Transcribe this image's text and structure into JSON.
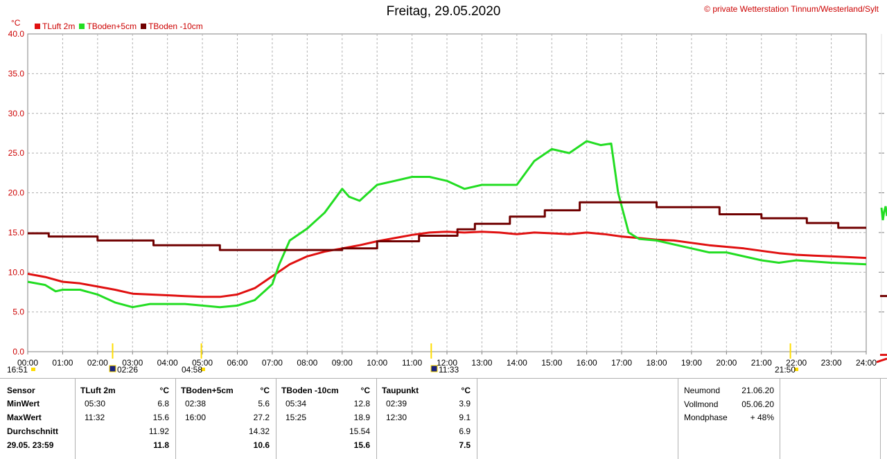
{
  "header": {
    "title": "Freitag, 29.05.2020",
    "copyright": "© private Wetterstation Tinnum/Westerland/Sylt",
    "unit": "°C"
  },
  "colors": {
    "tluft": "#e01010",
    "tboden5": "#22dd22",
    "tboden10": "#700000",
    "grid": "#b0b0b0",
    "axis_text": "#cc0000",
    "marker": "#ffdd00"
  },
  "chart_data": {
    "type": "line",
    "title": "Freitag, 29.05.2020",
    "ylabel": "°C",
    "xlabel": "",
    "xlim": [
      0,
      24
    ],
    "ylim": [
      0,
      40
    ],
    "grid": true,
    "legend": "top-left",
    "x_ticks": [
      "00:00",
      "01:00",
      "02:00",
      "03:00",
      "04:00",
      "05:00",
      "06:00",
      "07:00",
      "08:00",
      "09:00",
      "10:00",
      "11:00",
      "12:00",
      "13:00",
      "14:00",
      "15:00",
      "16:00",
      "17:00",
      "18:00",
      "19:00",
      "20:00",
      "21:00",
      "22:00",
      "23:00",
      "24:00"
    ],
    "y_ticks": [
      "0.0",
      "5.0",
      "10.0",
      "15.0",
      "20.0",
      "25.0",
      "30.0",
      "35.0",
      "40.0"
    ],
    "series": [
      {
        "name": "TLuft 2m",
        "color": "#e01010",
        "x": [
          0,
          0.5,
          1,
          1.5,
          2,
          2.5,
          3,
          3.5,
          4,
          4.5,
          5,
          5.5,
          6,
          6.5,
          7,
          7.5,
          8,
          8.5,
          9,
          9.5,
          10,
          10.5,
          11,
          11.5,
          12,
          12.5,
          13,
          13.5,
          14,
          14.5,
          15,
          15.5,
          16,
          16.5,
          17,
          17.5,
          18,
          18.5,
          19,
          19.5,
          20,
          20.5,
          21,
          21.5,
          22,
          22.5,
          23,
          23.5,
          24
        ],
        "y": [
          9.8,
          9.4,
          8.8,
          8.6,
          8.2,
          7.8,
          7.3,
          7.2,
          7.1,
          7.0,
          6.9,
          6.9,
          7.2,
          8.0,
          9.5,
          11.0,
          12.0,
          12.6,
          13.0,
          13.4,
          13.9,
          14.3,
          14.7,
          15.0,
          15.1,
          15.0,
          15.1,
          15.0,
          14.8,
          15.0,
          14.9,
          14.8,
          15.0,
          14.8,
          14.5,
          14.3,
          14.1,
          14.0,
          13.7,
          13.4,
          13.2,
          13.0,
          12.7,
          12.4,
          12.2,
          12.1,
          12.0,
          11.9,
          11.8
        ]
      },
      {
        "name": "TBoden+5cm",
        "color": "#22dd22",
        "x": [
          0,
          0.5,
          0.8,
          1,
          1.5,
          2,
          2.5,
          3,
          3.5,
          4,
          4.5,
          5,
          5.5,
          6,
          6.5,
          7,
          7.2,
          7.5,
          8,
          8.5,
          9,
          9.2,
          9.5,
          10,
          10.5,
          11,
          11.5,
          12,
          12.5,
          13,
          13.5,
          14,
          14.5,
          15,
          15.5,
          16,
          16.4,
          16.7,
          16.9,
          17.2,
          17.5,
          18,
          19,
          19.5,
          20,
          21,
          21.5,
          22,
          23,
          24
        ],
        "y": [
          8.8,
          8.4,
          7.6,
          7.8,
          7.8,
          7.2,
          6.2,
          5.6,
          6.0,
          6.0,
          6.0,
          5.8,
          5.6,
          5.8,
          6.5,
          8.5,
          11.0,
          14.0,
          15.5,
          17.5,
          20.5,
          19.5,
          19.0,
          21.0,
          21.5,
          22.0,
          22.0,
          21.5,
          20.5,
          21.0,
          21.0,
          21.0,
          24.0,
          25.5,
          25.0,
          26.5,
          26.0,
          26.2,
          20.0,
          15.0,
          14.2,
          14.0,
          13.0,
          12.5,
          12.5,
          11.5,
          11.2,
          11.5,
          11.2,
          11.0
        ]
      },
      {
        "name": "TBoden -10cm",
        "color": "#700000",
        "x": [
          0,
          0.6,
          0.6,
          2,
          2,
          3.6,
          3.6,
          5.5,
          5.5,
          9,
          9,
          10,
          10,
          11.2,
          11.2,
          12.3,
          12.3,
          12.8,
          12.8,
          13.8,
          13.8,
          14.8,
          14.8,
          15.8,
          15.8,
          18.0,
          18.0,
          19.8,
          19.8,
          21.0,
          21.0,
          22.3,
          22.3,
          23.2,
          23.2,
          24
        ],
        "y": [
          14.9,
          14.9,
          14.5,
          14.5,
          14.0,
          14.0,
          13.4,
          13.4,
          12.8,
          12.8,
          13.0,
          13.0,
          13.9,
          13.9,
          14.6,
          14.6,
          15.4,
          15.4,
          16.1,
          16.1,
          17.0,
          17.0,
          17.8,
          17.8,
          18.8,
          18.8,
          18.2,
          18.2,
          17.3,
          17.3,
          16.8,
          16.8,
          16.2,
          16.2,
          15.6,
          15.6
        ]
      }
    ],
    "markers": [
      {
        "label": "16:51"
      },
      {
        "label": "02:26"
      },
      {
        "label": "04:58"
      },
      {
        "label": "11:33"
      },
      {
        "label": "21:50"
      }
    ]
  },
  "legend": {
    "items": [
      {
        "label": "TLuft 2m",
        "color": "#e01010"
      },
      {
        "label": "TBoden+5cm",
        "color": "#22dd22"
      },
      {
        "label": "TBoden -10cm",
        "color": "#700000"
      }
    ]
  },
  "stats": {
    "labels": {
      "sensor": "Sensor",
      "min": "MinWert",
      "max": "MaxWert",
      "avg": "Durchschnitt",
      "current": "29.05. 23:59"
    },
    "columns": [
      {
        "name": "TLuft 2m",
        "unit": "°C",
        "min_time": "05:30",
        "min": "6.8",
        "max_time": "11:32",
        "max": "15.6",
        "avg": "11.92",
        "current": "11.8"
      },
      {
        "name": "TBoden+5cm",
        "unit": "°C",
        "min_time": "02:38",
        "min": "5.6",
        "max_time": "16:00",
        "max": "27.2",
        "avg": "14.32",
        "current": "10.6"
      },
      {
        "name": "TBoden -10cm",
        "unit": "°C",
        "min_time": "05:34",
        "min": "12.8",
        "max_time": "15:25",
        "max": "18.9",
        "avg": "15.54",
        "current": "15.6"
      },
      {
        "name": "Taupunkt",
        "unit": "°C",
        "min_time": "02:39",
        "min": "3.9",
        "max_time": "12:30",
        "max": "9.1",
        "avg": "6.9",
        "current": "7.5"
      }
    ],
    "moon": {
      "neumond_label": "Neumond",
      "neumond": "21.06.20",
      "vollmond_label": "Vollmond",
      "vollmond": "05.06.20",
      "phase_label": "Mondphase",
      "phase": "+ 48%"
    }
  }
}
